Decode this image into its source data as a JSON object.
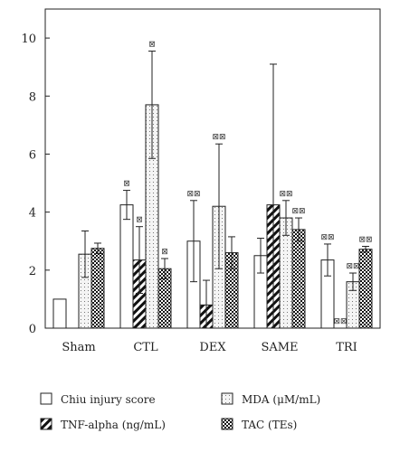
{
  "chart_data": {
    "type": "bar",
    "categories": [
      "Sham",
      "CTL",
      "DEX",
      "SAME",
      "TRI"
    ],
    "ylim": [
      0,
      11
    ],
    "yticks": [
      0,
      2,
      4,
      6,
      8,
      10
    ],
    "grid": false,
    "legend_position": "bottom",
    "series": [
      {
        "name": "Chiu injury score",
        "pattern": "white",
        "values": [
          1.0,
          4.25,
          3.0,
          2.5,
          2.35
        ],
        "errors": [
          0,
          0.5,
          1.4,
          0.6,
          0.55
        ],
        "marks": [
          "",
          "⊠",
          "⊠⊠",
          "",
          "⊠⊠"
        ]
      },
      {
        "name": "TNF-alpha (ng/mL)",
        "pattern": "hatch",
        "values": [
          0,
          2.35,
          0.8,
          4.25,
          0.0
        ],
        "errors": [
          0,
          1.15,
          0.85,
          4.85,
          0
        ],
        "marks": [
          "",
          "⊠",
          "",
          "",
          "⊠⊠"
        ]
      },
      {
        "name": "MDA (μM/mL)",
        "pattern": "dots",
        "values": [
          2.55,
          7.7,
          4.2,
          3.8,
          1.6
        ],
        "errors": [
          0.8,
          1.85,
          2.15,
          0.6,
          0.3
        ],
        "marks": [
          "",
          "⊠",
          "⊠⊠",
          "⊠⊠",
          "⊠⊠"
        ]
      },
      {
        "name": "TAC (TEs)",
        "pattern": "checker",
        "values": [
          2.75,
          2.05,
          2.6,
          3.4,
          2.72
        ],
        "errors": [
          0.18,
          0.35,
          0.55,
          0.4,
          0.1
        ],
        "marks": [
          "",
          "⊠",
          "",
          "⊠⊠",
          "⊠⊠"
        ]
      }
    ]
  }
}
